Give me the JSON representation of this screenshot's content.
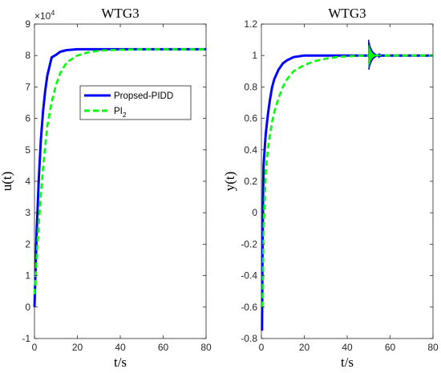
{
  "chart_data": [
    {
      "type": "line",
      "title": "WTG3",
      "xlabel": "t/s",
      "ylabel": "u(t)",
      "xlim": [
        0,
        80
      ],
      "ylim": [
        -1,
        9
      ],
      "y_exponent_label": "×10",
      "y_exponent_power": "4",
      "xticks": [
        "0",
        "20",
        "40",
        "60",
        "80"
      ],
      "yticks": [
        "-1",
        "0",
        "1",
        "2",
        "3",
        "4",
        "5",
        "6",
        "7",
        "8",
        "9"
      ],
      "legend": {
        "placement": "center-right",
        "entries": [
          {
            "label": "Propsed-PIDD",
            "sub": ""
          },
          {
            "label": "PI",
            "sub": "2"
          }
        ]
      },
      "series": [
        {
          "name": "Propsed-PIDD",
          "color": "#0000ff",
          "style": "solid",
          "x": [
            0,
            1,
            2,
            3,
            4,
            5,
            6,
            8,
            10,
            12,
            15,
            20,
            25,
            30,
            40,
            50,
            60,
            70,
            80
          ],
          "y": [
            0,
            2.37,
            4.09,
            5.33,
            6.23,
            6.88,
            7.36,
            7.94,
            8.02,
            8.12,
            8.17,
            8.2,
            8.2,
            8.2,
            8.2,
            8.2,
            8.2,
            8.2,
            8.2
          ]
        },
        {
          "name": "PI",
          "color": "#00ff00",
          "style": "dashed",
          "x": [
            0,
            1,
            2,
            3,
            4,
            5,
            6,
            8,
            10,
            12,
            15,
            20,
            25,
            30,
            35,
            40,
            50,
            60,
            70,
            80
          ],
          "y": [
            0.4,
            1.6,
            2.66,
            3.59,
            4.42,
            5.13,
            5.76,
            6.52,
            7.06,
            7.44,
            7.78,
            8.0,
            8.1,
            8.15,
            8.17,
            8.18,
            8.2,
            8.2,
            8.2,
            8.2
          ]
        }
      ]
    },
    {
      "type": "line",
      "title": "WTG3",
      "xlabel": "t/s",
      "ylabel": "y(t)",
      "xlim": [
        0,
        80
      ],
      "ylim": [
        -0.8,
        1.2
      ],
      "xticks": [
        "0",
        "20",
        "40",
        "60",
        "80"
      ],
      "yticks": [
        "-0.8",
        "-0.6",
        "-0.4",
        "-0.2",
        "0",
        "0.2",
        "0.4",
        "0.6",
        "0.8",
        "1",
        "1.2"
      ],
      "series": [
        {
          "name": "Propsed-PIDD",
          "color": "#0000ff",
          "style": "solid",
          "x": [
            0.3,
            0.5,
            0.8,
            1,
            1.5,
            2,
            3,
            4,
            5,
            6,
            8,
            10,
            12,
            15,
            20,
            30,
            40,
            50,
            60,
            70,
            80
          ],
          "y": [
            -0.75,
            -0.3,
            0.1,
            0.3,
            0.4,
            0.5,
            0.62,
            0.72,
            0.8,
            0.85,
            0.91,
            0.95,
            0.97,
            0.99,
            1.0,
            1.0,
            1.0,
            1.0,
            1.0,
            1.0,
            1.0
          ]
        },
        {
          "name": "PI",
          "color": "#00ff00",
          "style": "dashed",
          "x": [
            0.5,
            1,
            2,
            3,
            4,
            5,
            6,
            8,
            10,
            12,
            15,
            20,
            25,
            30,
            35,
            40,
            45,
            50,
            60,
            70,
            80
          ],
          "y": [
            -0.6,
            -0.1,
            0.26,
            0.4,
            0.5,
            0.58,
            0.64,
            0.73,
            0.8,
            0.85,
            0.9,
            0.94,
            0.965,
            0.98,
            0.99,
            0.995,
            0.998,
            1.0,
            1.0,
            1.0,
            1.0
          ]
        }
      ],
      "annotations": [
        {
          "type": "oscillation",
          "x_start": 50,
          "x_end": 56,
          "center": 1.0,
          "amplitude": 0.1,
          "series": "Propsed-PIDD"
        }
      ]
    }
  ]
}
